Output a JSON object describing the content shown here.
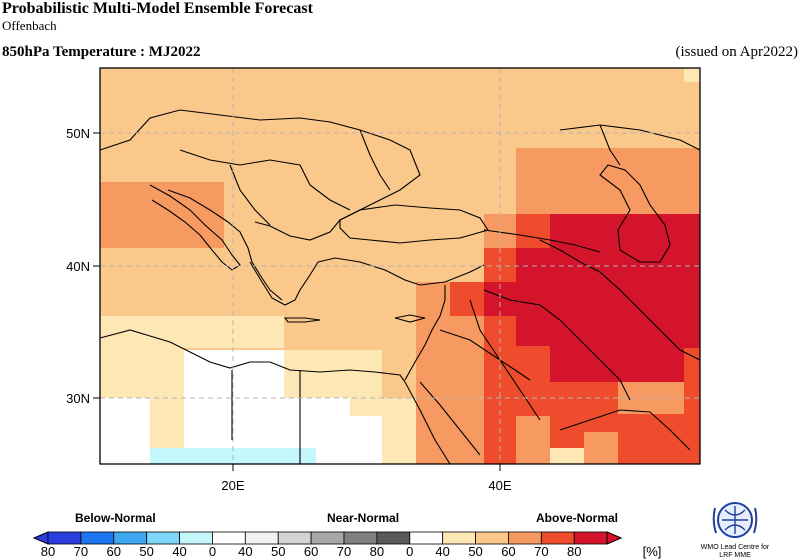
{
  "header": {
    "title": "Probabilistic Multi-Model Ensemble Forecast",
    "subtitle": "Offenbach",
    "variable": "850hPa Temperature : MJ2022",
    "issued": "(issued on Apr2022)"
  },
  "map": {
    "lat_labels": [
      "50N",
      "40N",
      "30N"
    ],
    "lon_labels": [
      "20E",
      "40E"
    ]
  },
  "legend": {
    "categories": {
      "below": "Below-Normal",
      "near": "Near-Normal",
      "above": "Above-Normal"
    },
    "ticks": [
      "80",
      "70",
      "60",
      "50",
      "40",
      "0",
      "40",
      "50",
      "60",
      "70",
      "80",
      "0",
      "40",
      "50",
      "60",
      "70",
      "80"
    ],
    "unit": "[%]",
    "colors": {
      "below": [
        "#2a3dde",
        "#1d74f0",
        "#3da8f0",
        "#7dd6f8",
        "#c4f7fb"
      ],
      "near": [
        "#f2f2f2",
        "#d3d3d3",
        "#a8a8a8",
        "#808080",
        "#5a5a5a"
      ],
      "above": [
        "#fde7b4",
        "#fac88a",
        "#f69a62",
        "#ee4c2c",
        "#d4142a"
      ],
      "white": "#ffffff"
    }
  },
  "logo": {
    "line1": "WMO Lead Centre for",
    "line2": "LRF MME"
  }
}
